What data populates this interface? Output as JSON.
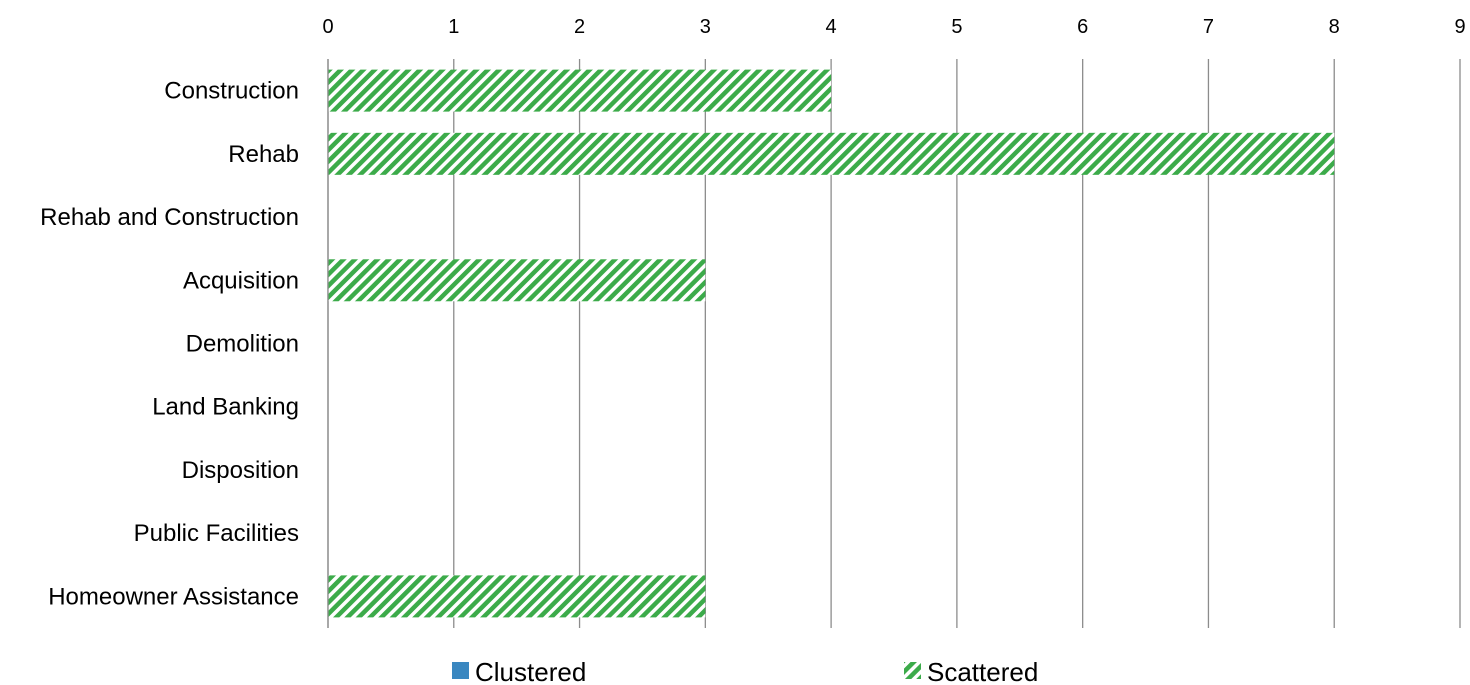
{
  "chart_data": {
    "type": "bar",
    "orientation": "horizontal",
    "categories": [
      "Construction",
      "Rehab",
      "Rehab and Construction",
      "Acquisition",
      "Demolition",
      "Land Banking",
      "Disposition",
      "Public Facilities",
      "Homeowner Assistance"
    ],
    "series": [
      {
        "name": "Clustered",
        "color": "#3a87c0",
        "fill": "solid",
        "values": [
          0,
          0,
          0,
          0,
          0,
          0,
          0,
          0,
          0
        ]
      },
      {
        "name": "Scattered",
        "color": "#3cab4a",
        "fill": "diagonal-hatch",
        "values": [
          4,
          8,
          0,
          3,
          0,
          0,
          0,
          0,
          3
        ]
      }
    ],
    "xlim": [
      0,
      9
    ],
    "x_ticks": [
      "0",
      "1",
      "2",
      "3",
      "4",
      "5",
      "6",
      "7",
      "8",
      "9"
    ],
    "x_axis_position": "top",
    "grid": "vertical",
    "legend_position": "bottom"
  }
}
